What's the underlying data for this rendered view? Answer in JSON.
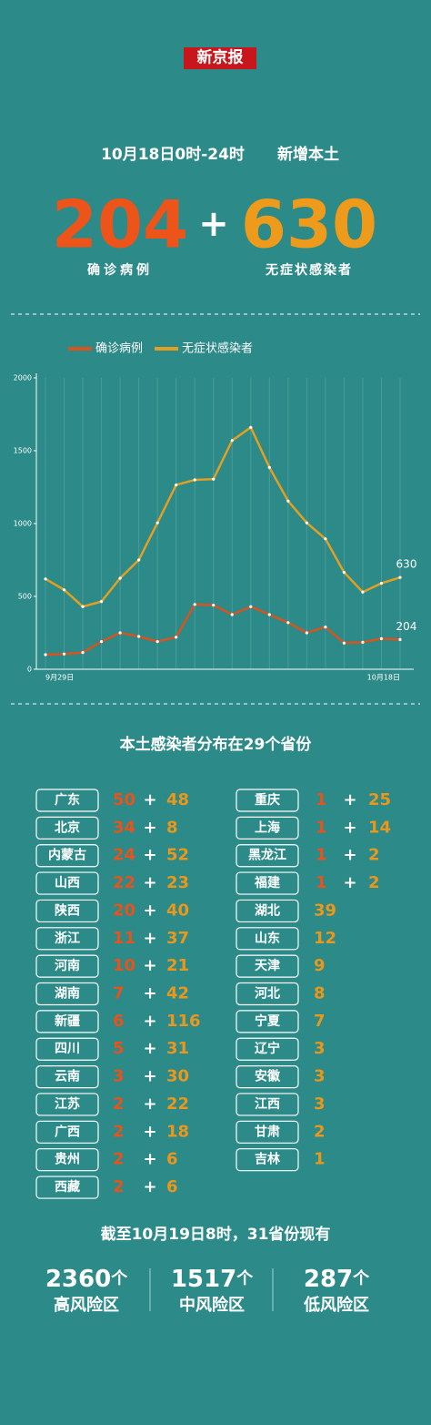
{
  "header": {
    "logo": "新京报",
    "date_range": "10月18日0时-24时",
    "subtitle": "新增本土"
  },
  "totals": {
    "confirmed": {
      "value": 204,
      "label": "确诊病例"
    },
    "asymptomatic": {
      "value": 630,
      "label": "无症状感染者"
    },
    "plus": "+"
  },
  "chart_data": {
    "type": "line",
    "categories": [
      "9月29日",
      null,
      null,
      null,
      null,
      null,
      null,
      null,
      null,
      null,
      null,
      null,
      null,
      null,
      null,
      null,
      null,
      null,
      null,
      "10月18日"
    ],
    "series": [
      {
        "name": "确诊病例",
        "color": "#d9531e",
        "values": [
          100,
          105,
          115,
          190,
          250,
          225,
          190,
          220,
          445,
          440,
          375,
          430,
          375,
          320,
          250,
          290,
          180,
          185,
          210,
          204
        ]
      },
      {
        "name": "无症状感染者",
        "color": "#e39f22",
        "values": [
          620,
          545,
          430,
          465,
          625,
          750,
          1005,
          1265,
          1300,
          1305,
          1570,
          1660,
          1385,
          1155,
          1005,
          895,
          665,
          530,
          590,
          630
        ]
      }
    ],
    "ylim": [
      0,
      2000
    ],
    "yticks": [
      0,
      500,
      1000,
      1500,
      2000
    ],
    "grid": true,
    "end_labels": true
  },
  "provinces": {
    "title": "本土感染者分布在29个省份",
    "plus": "+",
    "left": [
      {
        "name": "广东",
        "confirmed": 50,
        "asymptomatic": 48
      },
      {
        "name": "北京",
        "confirmed": 34,
        "asymptomatic": 8
      },
      {
        "name": "内蒙古",
        "confirmed": 24,
        "asymptomatic": 52
      },
      {
        "name": "山西",
        "confirmed": 22,
        "asymptomatic": 23
      },
      {
        "name": "陕西",
        "confirmed": 20,
        "asymptomatic": 40
      },
      {
        "name": "浙江",
        "confirmed": 11,
        "asymptomatic": 37
      },
      {
        "name": "河南",
        "confirmed": 10,
        "asymptomatic": 21
      },
      {
        "name": "湖南",
        "confirmed": 7,
        "asymptomatic": 42
      },
      {
        "name": "新疆",
        "confirmed": 6,
        "asymptomatic": 116
      },
      {
        "name": "四川",
        "confirmed": 5,
        "asymptomatic": 31
      },
      {
        "name": "云南",
        "confirmed": 3,
        "asymptomatic": 30
      },
      {
        "name": "江苏",
        "confirmed": 2,
        "asymptomatic": 22
      },
      {
        "name": "广西",
        "confirmed": 2,
        "asymptomatic": 18
      },
      {
        "name": "贵州",
        "confirmed": 2,
        "asymptomatic": 6
      },
      {
        "name": "西藏",
        "confirmed": 2,
        "asymptomatic": 6
      }
    ],
    "right": [
      {
        "name": "重庆",
        "confirmed": 1,
        "asymptomatic": 25
      },
      {
        "name": "上海",
        "confirmed": 1,
        "asymptomatic": 14
      },
      {
        "name": "黑龙江",
        "confirmed": 1,
        "asymptomatic": 2
      },
      {
        "name": "福建",
        "confirmed": 1,
        "asymptomatic": 2
      },
      {
        "name": "湖北",
        "asymptomatic": 39
      },
      {
        "name": "山东",
        "asymptomatic": 12
      },
      {
        "name": "天津",
        "asymptomatic": 9
      },
      {
        "name": "河北",
        "asymptomatic": 8
      },
      {
        "name": "宁夏",
        "asymptomatic": 7
      },
      {
        "name": "辽宁",
        "asymptomatic": 3
      },
      {
        "name": "安徽",
        "asymptomatic": 3
      },
      {
        "name": "江西",
        "asymptomatic": 3
      },
      {
        "name": "甘肃",
        "asymptomatic": 2
      },
      {
        "name": "吉林",
        "asymptomatic": 1
      }
    ]
  },
  "risk_areas": {
    "title": "截至10月19日8时，31省份现有",
    "unit": "个",
    "items": [
      {
        "value": 2360,
        "label": "高风险区"
      },
      {
        "value": 1517,
        "label": "中风险区"
      },
      {
        "value": 287,
        "label": "低风险区"
      }
    ]
  }
}
